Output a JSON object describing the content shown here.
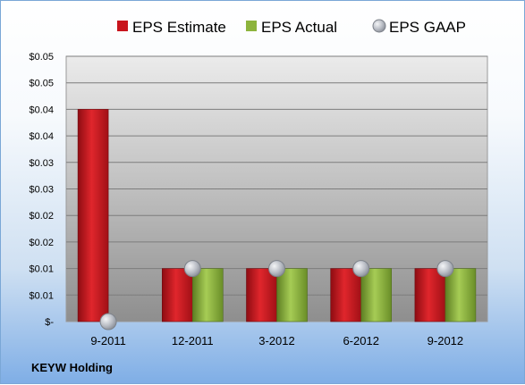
{
  "company": "KEYW Holding",
  "chart_data": {
    "type": "bar",
    "categories": [
      "9-2011",
      "12-2011",
      "3-2012",
      "6-2012",
      "9-2012"
    ],
    "series": [
      {
        "name": "EPS Estimate",
        "kind": "bar",
        "color": "#c8141c",
        "values": [
          0.04,
          0.01,
          0.01,
          0.01,
          0.01
        ]
      },
      {
        "name": "EPS Actual",
        "kind": "bar",
        "color": "#8db43c",
        "values": [
          null,
          0.01,
          0.01,
          0.01,
          0.01
        ]
      },
      {
        "name": "EPS GAAP",
        "kind": "marker",
        "color": "#b8bcc4",
        "values": [
          0,
          0.01,
          0.01,
          0.01,
          0.01
        ]
      }
    ],
    "ylim": [
      0,
      0.05
    ],
    "yticks": [
      0,
      0.005,
      0.01,
      0.015,
      0.02,
      0.025,
      0.03,
      0.035,
      0.04,
      0.045,
      0.05
    ],
    "ytick_labels": [
      "$-",
      "$0.01",
      "$0.01",
      "$0.02",
      "$0.02",
      "$0.03",
      "$0.03",
      "$0.04",
      "$0.04",
      "$0.05",
      "$0.05"
    ],
    "grid": true,
    "legend": "top"
  }
}
